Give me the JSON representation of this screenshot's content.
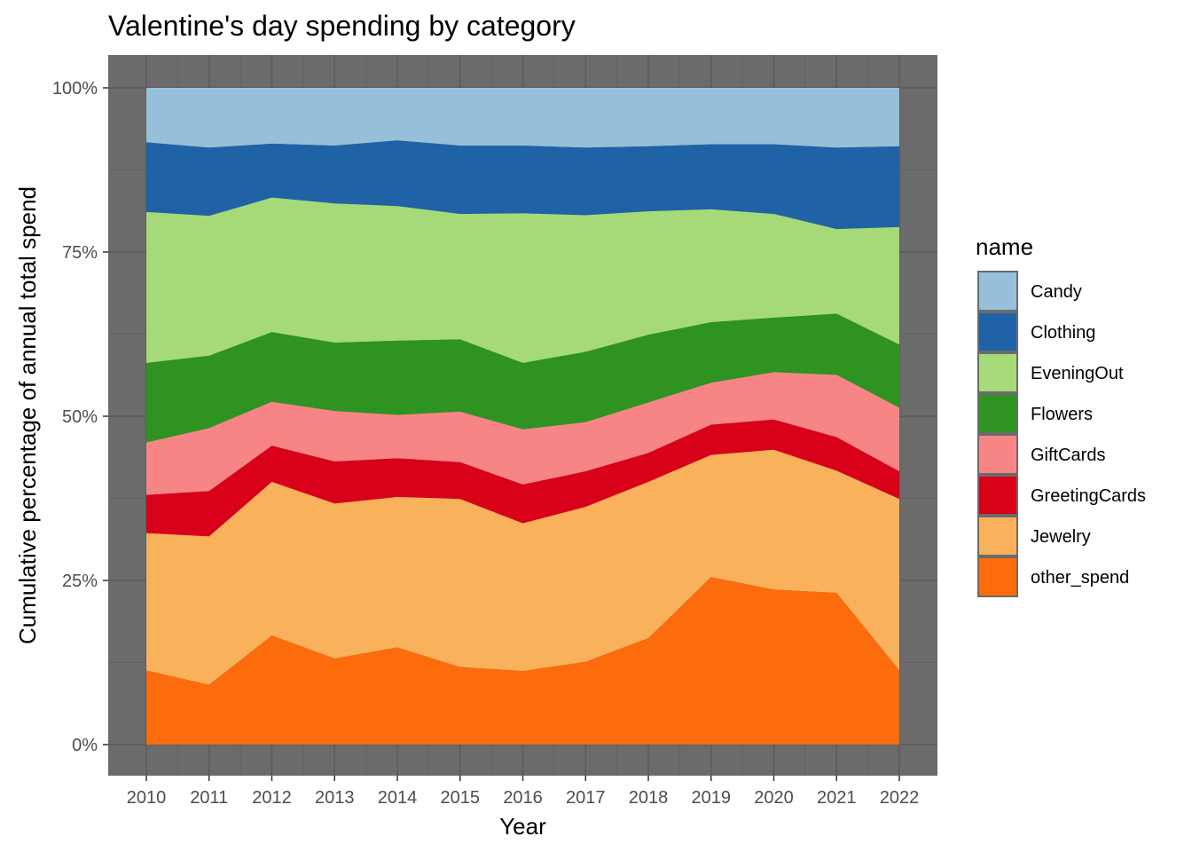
{
  "chart_data": {
    "type": "area",
    "stacked": "percent",
    "title": "Valentine's day spending by category",
    "xlabel": "Year",
    "ylabel": "Cumulative percentage of annual total spend",
    "x": [
      2010,
      2011,
      2012,
      2013,
      2014,
      2015,
      2016,
      2017,
      2018,
      2019,
      2020,
      2021,
      2022
    ],
    "ylim": [
      0,
      1
    ],
    "y_ticks": [
      {
        "value": 0,
        "label": "0%"
      },
      {
        "value": 0.25,
        "label": "25%"
      },
      {
        "value": 0.5,
        "label": "50%"
      },
      {
        "value": 0.75,
        "label": "75%"
      },
      {
        "value": 1,
        "label": "100%"
      }
    ],
    "grid": true,
    "panel_background": "#6b6b6b",
    "legend": {
      "title": "name",
      "position": "right"
    },
    "series_cumulative_top_note_free": true,
    "series": [
      {
        "name": "Candy",
        "color": "#96c0da",
        "values": [
          1.0,
          1.0,
          1.0,
          1.0,
          1.0,
          1.0,
          1.0,
          1.0,
          1.0,
          1.0,
          1.0,
          1.0,
          1.0
        ]
      },
      {
        "name": "Clothing",
        "color": "#1f63a6",
        "values": [
          0.917,
          0.909,
          0.915,
          0.912,
          0.92,
          0.912,
          0.912,
          0.909,
          0.911,
          0.914,
          0.914,
          0.909,
          0.911
        ]
      },
      {
        "name": "EveningOut",
        "color": "#a6da78",
        "values": [
          0.811,
          0.805,
          0.833,
          0.824,
          0.82,
          0.808,
          0.809,
          0.806,
          0.812,
          0.815,
          0.808,
          0.785,
          0.788
        ]
      },
      {
        "name": "Flowers",
        "color": "#2e9321",
        "values": [
          0.581,
          0.592,
          0.628,
          0.612,
          0.615,
          0.617,
          0.581,
          0.598,
          0.624,
          0.643,
          0.65,
          0.656,
          0.609
        ]
      },
      {
        "name": "GiftCards",
        "color": "#f78586",
        "values": [
          0.46,
          0.482,
          0.522,
          0.508,
          0.502,
          0.507,
          0.48,
          0.491,
          0.521,
          0.551,
          0.567,
          0.563,
          0.513
        ]
      },
      {
        "name": "GreetingCards",
        "color": "#d9001a",
        "values": [
          0.38,
          0.386,
          0.455,
          0.431,
          0.436,
          0.43,
          0.396,
          0.416,
          0.444,
          0.487,
          0.495,
          0.468,
          0.416
        ]
      },
      {
        "name": "Jewelry",
        "color": "#f9b15c",
        "values": [
          0.322,
          0.317,
          0.4,
          0.367,
          0.377,
          0.374,
          0.337,
          0.362,
          0.4,
          0.441,
          0.449,
          0.417,
          0.374
        ]
      },
      {
        "name": "other_spend",
        "color": "#fc6b0c",
        "values": [
          0.113,
          0.091,
          0.166,
          0.131,
          0.148,
          0.118,
          0.112,
          0.126,
          0.162,
          0.255,
          0.236,
          0.231,
          0.113
        ]
      }
    ]
  }
}
